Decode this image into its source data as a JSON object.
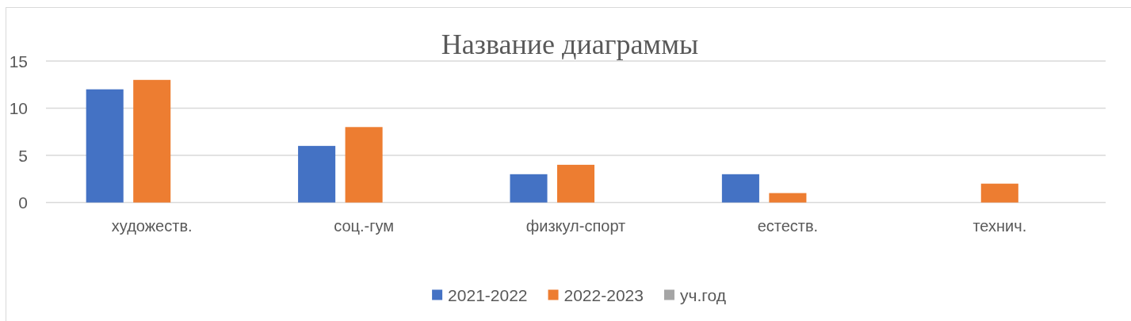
{
  "chart_data": {
    "type": "bar",
    "title": "Название диаграммы",
    "categories": [
      "художеств.",
      "соц.-гум",
      "физкул-спорт",
      "естеств.",
      "технич."
    ],
    "series": [
      {
        "name": "2021-2022",
        "color": "#4472c4",
        "values": [
          12,
          6,
          3,
          3,
          null
        ]
      },
      {
        "name": "2022-2023",
        "color": "#ed7d31",
        "values": [
          13,
          8,
          4,
          1,
          2
        ]
      },
      {
        "name": "уч.год",
        "color": "#a5a5a5",
        "values": [
          null,
          null,
          null,
          null,
          null
        ]
      }
    ],
    "ylim": [
      0,
      15
    ],
    "yticks": [
      0,
      5,
      10,
      15
    ],
    "grid": "y",
    "legend": "bottom"
  }
}
